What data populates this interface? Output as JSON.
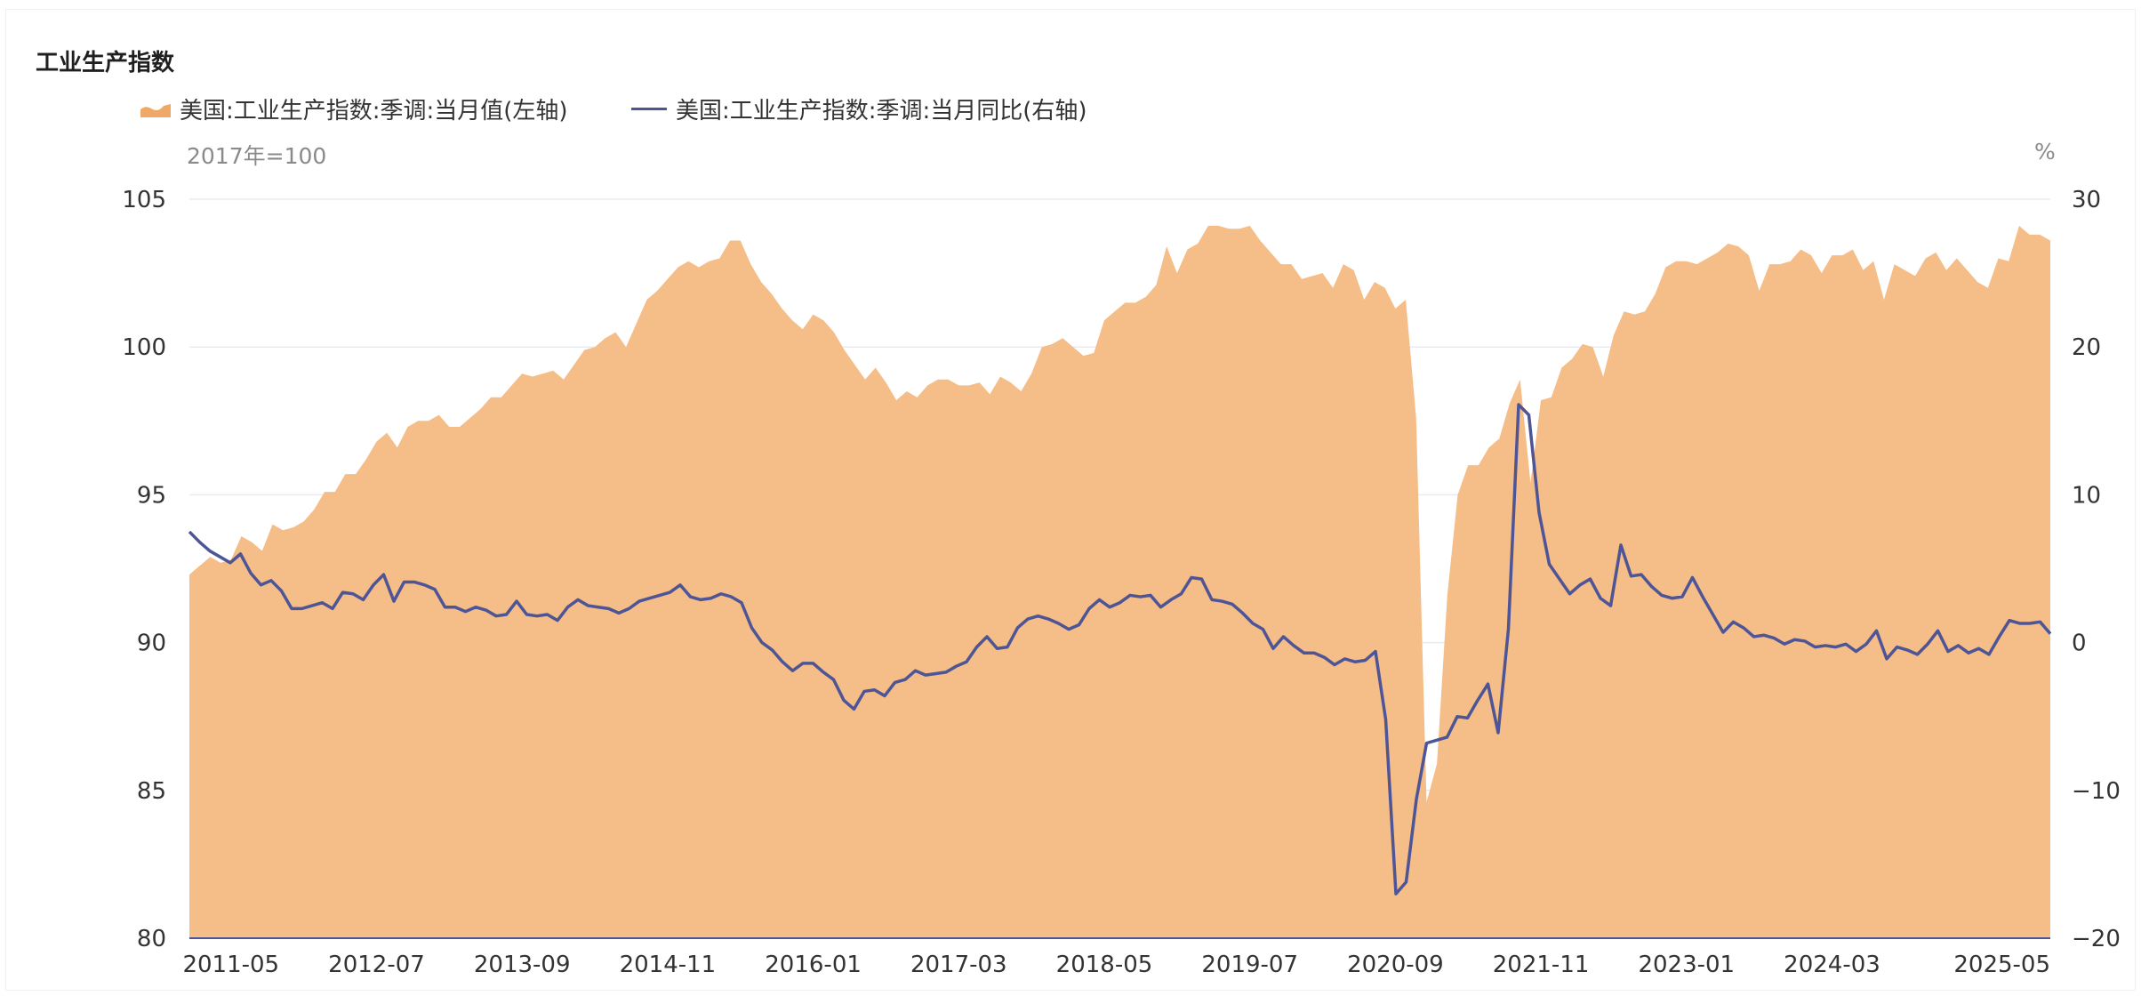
{
  "chart_data": {
    "type": "area+line",
    "title": "工业生产指数",
    "left_unit": "2017年=100",
    "right_unit": "%",
    "series": [
      {
        "name": "美国:工业生产指数:季调:当月值(左轴)",
        "axis": "left",
        "kind": "area",
        "color": "#f5bd87",
        "legend_color": "#f0a866"
      },
      {
        "name": "美国:工业生产指数:季调:当月同比(右轴)",
        "axis": "right",
        "kind": "line",
        "color": "#4e5596"
      }
    ],
    "x_labels": [
      "2011-05",
      "2012-07",
      "2013-09",
      "2014-11",
      "2016-01",
      "2017-03",
      "2018-05",
      "2019-07",
      "2020-09",
      "2021-11",
      "2023-01",
      "2024-03",
      "2025-05"
    ],
    "left_axis": {
      "ylim": [
        80,
        105
      ],
      "ticks": [
        "80",
        "85",
        "90",
        "95",
        "100",
        "105"
      ]
    },
    "right_axis": {
      "ylim": [
        -20,
        30
      ],
      "ticks": [
        "−20",
        "−10",
        "0",
        "10",
        "20",
        "30"
      ]
    },
    "grid": true,
    "index_values": [
      92.3,
      92.6,
      92.9,
      92.7,
      92.8,
      93.6,
      93.4,
      93.1,
      94.0,
      93.8,
      93.9,
      94.1,
      94.5,
      95.1,
      95.1,
      95.7,
      95.7,
      96.2,
      96.8,
      97.1,
      96.6,
      97.3,
      97.5,
      97.5,
      97.7,
      97.3,
      97.3,
      97.6,
      97.9,
      98.3,
      98.3,
      98.7,
      99.1,
      99.0,
      99.1,
      99.2,
      98.9,
      99.4,
      99.9,
      100.0,
      100.3,
      100.5,
      100.0,
      100.8,
      101.6,
      101.9,
      102.3,
      102.7,
      102.9,
      102.7,
      102.9,
      103.0,
      103.6,
      103.6,
      102.8,
      102.2,
      101.8,
      101.3,
      100.9,
      100.6,
      101.1,
      100.9,
      100.5,
      99.9,
      99.4,
      98.9,
      99.3,
      98.8,
      98.2,
      98.5,
      98.3,
      98.7,
      98.9,
      98.9,
      98.7,
      98.7,
      98.8,
      98.4,
      99.0,
      98.8,
      98.5,
      99.1,
      100.0,
      100.1,
      100.3,
      100.0,
      99.7,
      99.8,
      100.9,
      101.2,
      101.5,
      101.5,
      101.7,
      102.1,
      103.4,
      102.5,
      103.3,
      103.5,
      104.1,
      104.1,
      104.0,
      104.0,
      104.1,
      103.6,
      103.2,
      102.8,
      102.8,
      102.3,
      102.4,
      102.5,
      102.0,
      102.8,
      102.6,
      101.6,
      102.2,
      102.0,
      101.3,
      101.6,
      97.6,
      84.6,
      85.9,
      91.6,
      95.0,
      96.0,
      96.0,
      96.6,
      96.9,
      98.1,
      98.9,
      95.4,
      98.2,
      98.3,
      99.3,
      99.6,
      100.1,
      100.0,
      99.0,
      100.4,
      101.2,
      101.1,
      101.2,
      101.8,
      102.7,
      102.9,
      102.9,
      102.8,
      103.0,
      103.2,
      103.5,
      103.4,
      103.1,
      101.9,
      102.8,
      102.8,
      102.9,
      103.3,
      103.1,
      102.5,
      103.1,
      103.1,
      103.3,
      102.6,
      102.9,
      101.6,
      102.8,
      102.6,
      102.4,
      103.0,
      103.2,
      102.6,
      103.0,
      102.6,
      102.2,
      102.0,
      103.0,
      102.9,
      104.1,
      103.8,
      103.8,
      103.6
    ],
    "yoy_values": [
      7.5,
      6.8,
      6.2,
      5.8,
      5.4,
      6.0,
      4.7,
      3.9,
      4.2,
      3.5,
      2.3,
      2.3,
      2.5,
      2.7,
      2.3,
      3.4,
      3.3,
      2.9,
      3.9,
      4.6,
      2.8,
      4.1,
      4.1,
      3.9,
      3.6,
      2.4,
      2.4,
      2.1,
      2.4,
      2.2,
      1.8,
      1.9,
      2.8,
      1.9,
      1.8,
      1.9,
      1.5,
      2.4,
      2.9,
      2.5,
      2.4,
      2.3,
      2.0,
      2.3,
      2.8,
      3.0,
      3.2,
      3.4,
      3.9,
      3.1,
      2.9,
      3.0,
      3.3,
      3.1,
      2.7,
      1.0,
      0.0,
      -0.5,
      -1.3,
      -1.9,
      -1.4,
      -1.4,
      -2.0,
      -2.5,
      -3.9,
      -4.5,
      -3.3,
      -3.2,
      -3.6,
      -2.7,
      -2.5,
      -1.9,
      -2.2,
      -2.1,
      -2.0,
      -1.6,
      -1.3,
      -0.3,
      0.4,
      -0.4,
      -0.3,
      1.0,
      1.6,
      1.8,
      1.6,
      1.3,
      0.9,
      1.2,
      2.3,
      2.9,
      2.4,
      2.7,
      3.2,
      3.1,
      3.2,
      2.4,
      2.9,
      3.3,
      4.4,
      4.3,
      2.9,
      2.8,
      2.6,
      2.0,
      1.3,
      0.9,
      -0.4,
      0.4,
      -0.2,
      -0.7,
      -0.7,
      -1.0,
      -1.5,
      -1.1,
      -1.3,
      -1.2,
      -0.6,
      -5.2,
      -17.0,
      -16.2,
      -10.6,
      -6.8,
      -6.6,
      -6.4,
      -5.0,
      -5.1,
      -3.9,
      -2.8,
      -6.1,
      0.9,
      16.1,
      15.4,
      8.8,
      5.3,
      4.3,
      3.3,
      3.9,
      4.3,
      3.0,
      2.5,
      6.6,
      4.5,
      4.6,
      3.8,
      3.2,
      3.0,
      3.1,
      4.4,
      3.1,
      1.9,
      0.7,
      1.4,
      1.0,
      0.4,
      0.5,
      0.3,
      -0.1,
      0.2,
      0.1,
      -0.3,
      -0.2,
      -0.3,
      -0.1,
      -0.6,
      -0.1,
      0.8,
      -1.1,
      -0.3,
      -0.5,
      -0.8,
      -0.1,
      0.8,
      -0.6,
      -0.2,
      -0.7,
      -0.4,
      -0.8,
      0.4,
      1.5,
      1.3,
      1.3,
      1.4,
      0.6
    ]
  }
}
